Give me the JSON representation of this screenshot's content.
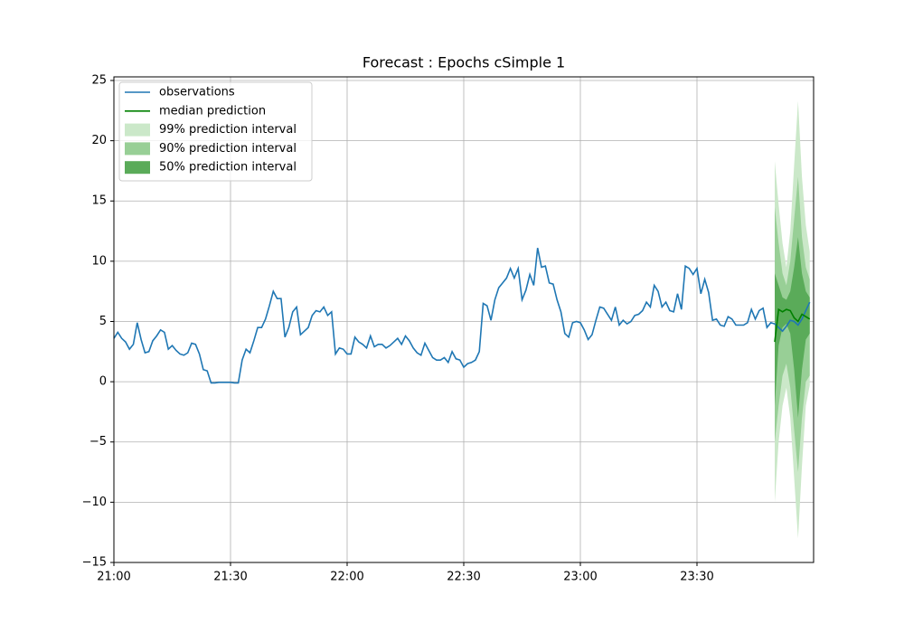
{
  "chart_data": {
    "type": "line",
    "title": "Forecast : Epochs cSimple 1",
    "xlim": [
      "21:00",
      "00:00"
    ],
    "xticks": [
      "21:00",
      "21:30",
      "22:00",
      "22:30",
      "23:00",
      "23:30"
    ],
    "ylim": [
      -15,
      25.3
    ],
    "yticks": [
      {
        "value": -15,
        "label": "−15"
      },
      {
        "value": -10,
        "label": "−10"
      },
      {
        "value": -5,
        "label": "−5"
      },
      0,
      5,
      10,
      15,
      20,
      25
    ],
    "grid": true,
    "legend": "upper left",
    "series": [
      {
        "name": "observations",
        "color": "#1f77b4",
        "x": [
          "21:00",
          "21:01",
          "21:02",
          "21:03",
          "21:04",
          "21:05",
          "21:06",
          "21:07",
          "21:08",
          "21:09",
          "21:10",
          "21:11",
          "21:12",
          "21:13",
          "21:14",
          "21:15",
          "21:16",
          "21:17",
          "21:18",
          "21:19",
          "21:20",
          "21:21",
          "21:22",
          "21:23",
          "21:24",
          "21:25",
          "21:26",
          "21:27",
          "21:28",
          "21:29",
          "21:30",
          "21:31",
          "21:32",
          "21:33",
          "21:34",
          "21:35",
          "21:36",
          "21:37",
          "21:38",
          "21:39",
          "21:40",
          "21:41",
          "21:42",
          "21:43",
          "21:44",
          "21:45",
          "21:46",
          "21:47",
          "21:48",
          "21:49",
          "21:50",
          "21:51",
          "21:52",
          "21:53",
          "21:54",
          "21:55",
          "21:56",
          "21:57",
          "21:58",
          "21:59",
          "22:00",
          "22:01",
          "22:02",
          "22:03",
          "22:04",
          "22:05",
          "22:06",
          "22:07",
          "22:08",
          "22:09",
          "22:10",
          "22:11",
          "22:12",
          "22:13",
          "22:14",
          "22:15",
          "22:16",
          "22:17",
          "22:18",
          "22:19",
          "22:20",
          "22:21",
          "22:22",
          "22:23",
          "22:24",
          "22:25",
          "22:26",
          "22:27",
          "22:28",
          "22:29",
          "22:30",
          "22:31",
          "22:32",
          "22:33",
          "22:34",
          "22:35",
          "22:36",
          "22:37",
          "22:38",
          "22:39",
          "22:40",
          "22:41",
          "22:42",
          "22:43",
          "22:44",
          "22:45",
          "22:46",
          "22:47",
          "22:48",
          "22:49",
          "22:50",
          "22:51",
          "22:52",
          "22:53",
          "22:54",
          "22:55",
          "22:56",
          "22:57",
          "22:58",
          "22:59",
          "23:00",
          "23:01",
          "23:02",
          "23:03",
          "23:04",
          "23:05",
          "23:06",
          "23:07",
          "23:08",
          "23:09",
          "23:10",
          "23:11",
          "23:12",
          "23:13",
          "23:14",
          "23:15",
          "23:16",
          "23:17",
          "23:18",
          "23:19",
          "23:20",
          "23:21",
          "23:22",
          "23:23",
          "23:24",
          "23:25",
          "23:26",
          "23:27",
          "23:28",
          "23:29",
          "23:30",
          "23:31",
          "23:32",
          "23:33",
          "23:34",
          "23:35",
          "23:36",
          "23:37",
          "23:38",
          "23:39",
          "23:40",
          "23:41",
          "23:42",
          "23:43",
          "23:44",
          "23:45",
          "23:46",
          "23:47",
          "23:48",
          "23:49",
          "23:50",
          "23:51",
          "23:52",
          "23:53",
          "23:54",
          "23:55",
          "23:56",
          "23:57",
          "23:58",
          "23:59"
        ],
        "values": [
          3.6,
          4.1,
          3.6,
          3.3,
          2.7,
          3.1,
          4.9,
          3.5,
          2.4,
          2.5,
          3.4,
          3.8,
          4.3,
          4.1,
          2.7,
          3.0,
          2.6,
          2.3,
          2.2,
          2.4,
          3.2,
          3.1,
          2.3,
          1.0,
          0.9,
          -0.1,
          -0.1,
          -0.05,
          -0.05,
          -0.05,
          -0.05,
          -0.1,
          -0.1,
          1.8,
          2.7,
          2.4,
          3.4,
          4.5,
          4.5,
          5.2,
          6.3,
          7.5,
          6.9,
          6.9,
          3.7,
          4.5,
          5.8,
          6.2,
          3.9,
          4.2,
          4.5,
          5.5,
          5.9,
          5.8,
          6.2,
          5.5,
          5.8,
          2.3,
          2.8,
          2.7,
          2.3,
          2.3,
          3.7,
          3.3,
          3.1,
          2.8,
          3.8,
          2.9,
          3.1,
          3.1,
          2.8,
          3.0,
          3.3,
          3.6,
          3.1,
          3.8,
          3.4,
          2.8,
          2.4,
          2.2,
          3.2,
          2.6,
          2.0,
          1.8,
          1.8,
          2.0,
          1.6,
          2.5,
          1.9,
          1.8,
          1.2,
          1.5,
          1.6,
          1.8,
          2.5,
          6.5,
          6.3,
          5.1,
          6.8,
          7.8,
          8.2,
          8.6,
          9.4,
          8.6,
          9.4,
          6.8,
          7.6,
          8.9,
          8.0,
          11.1,
          9.5,
          9.6,
          8.2,
          8.1,
          6.8,
          5.8,
          4.0,
          3.7,
          4.9,
          5.0,
          4.9,
          4.3,
          3.5,
          3.9,
          5.1,
          6.2,
          6.1,
          5.6,
          5.1,
          6.2,
          4.7,
          5.1,
          4.8,
          5.0,
          5.5,
          5.6,
          5.9,
          6.6,
          6.2,
          8.0,
          7.5,
          6.2,
          6.6,
          5.9,
          5.8,
          7.3,
          6.0,
          9.6,
          9.4,
          8.9,
          9.4,
          7.3,
          8.5,
          7.4,
          5.1,
          5.2,
          4.7,
          4.6,
          5.4,
          5.2,
          4.7,
          4.7,
          4.7,
          4.9,
          6.0,
          5.2,
          5.9,
          6.1,
          4.5,
          4.9,
          4.8,
          4.5,
          4.2,
          4.6,
          5.1,
          5.0,
          4.7,
          5.2,
          5.9,
          6.6
        ]
      },
      {
        "name": "median prediction",
        "color": "#008000",
        "x": [
          "23:50",
          "23:51",
          "23:52",
          "23:53",
          "23:54",
          "23:55",
          "23:56",
          "23:57",
          "23:58",
          "23:59"
        ],
        "values": [
          3.3,
          6.0,
          5.8,
          6.0,
          5.9,
          5.3,
          5.0,
          5.6,
          5.4,
          5.2
        ]
      }
    ],
    "intervals": [
      {
        "name": "99% prediction interval",
        "color": "#cbe8c9",
        "lower": [
          -10,
          -5,
          -2,
          -0.5,
          -3,
          -8,
          -13,
          -7,
          -2,
          -0.3
        ],
        "upper": [
          18.3,
          14.7,
          11.5,
          9.5,
          12.5,
          18,
          23.3,
          17,
          13,
          10.8
        ]
      },
      {
        "name": "90% prediction interval",
        "color": "#98cf96",
        "lower": [
          -5,
          -2,
          0.5,
          1.5,
          -0.5,
          -4,
          -7.5,
          -3,
          0,
          0.5
        ],
        "upper": [
          14.5,
          11.5,
          9.0,
          8.0,
          10,
          13.5,
          17,
          12,
          9.5,
          8.5
        ]
      },
      {
        "name": "50% prediction interval",
        "color": "#5aab59",
        "lower": [
          -2,
          3,
          4.5,
          4.8,
          4,
          1,
          -3,
          1,
          3.5,
          4
        ],
        "upper": [
          9,
          8,
          7,
          6.8,
          7.5,
          9.5,
          12,
          9,
          7.5,
          7
        ]
      }
    ]
  }
}
